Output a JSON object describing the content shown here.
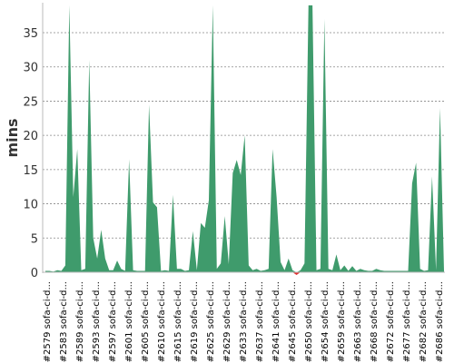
{
  "chart_data": {
    "type": "area",
    "title": "",
    "xlabel": "",
    "ylabel": "mins",
    "ylim": [
      0,
      39
    ],
    "yticks": [
      0,
      5,
      10,
      15,
      20,
      25,
      30,
      35
    ],
    "grid": "horizontal dashed",
    "legend": "none",
    "xtick_labels": [
      "#2579 sofa-ci-d...",
      "#2583 sofa-ci-d...",
      "#2589 sofa-ci-d...",
      "#2593 sofa-ci-d...",
      "#2597 sofa-ci-d...",
      "#2601 sofa-ci-d...",
      "#2605 sofa-ci-d...",
      "#2610 sofa-ci-d...",
      "#2615 sofa-ci-d...",
      "#2619 sofa-ci-d...",
      "#2625 sofa-ci-d...",
      "#2629 sofa-ci-d...",
      "#2633 sofa-ci-d...",
      "#2637 sofa-ci-d...",
      "#2641 sofa-ci-d...",
      "#2645 sofa-ci-d...",
      "#2650 sofa-ci-d...",
      "#2654 sofa-ci-d...",
      "#2659 sofa-ci-d...",
      "#2663 sofa-ci-d...",
      "#2668 sofa-ci-d...",
      "#2672 sofa-ci-d...",
      "#2677 sofa-ci-d...",
      "#2682 sofa-ci-d...",
      "#2686 sofa-ci-d..."
    ],
    "values": [
      0.2,
      0.2,
      0.1,
      0.3,
      0.2,
      1.0,
      39,
      11,
      18,
      0.3,
      0.5,
      31,
      5,
      2,
      6.2,
      2,
      0.3,
      0.3,
      1.7,
      0.5,
      0.2,
      16.5,
      0.3,
      0.2,
      0.2,
      0.2,
      24.5,
      10.2,
      9.5,
      0.2,
      0.3,
      0.2,
      11.3,
      0.5,
      0.5,
      0.2,
      0.3,
      6,
      0.3,
      7.2,
      6.5,
      10.5,
      39,
      0.5,
      1.3,
      8.2,
      1.2,
      14.5,
      16.4,
      14.2,
      20,
      1,
      0.3,
      0.5,
      0.2,
      0.3,
      0.5,
      18,
      11,
      1.5,
      0.3,
      2,
      0.3,
      -0.4,
      0.3,
      1.3,
      39,
      39,
      0.3,
      0.5,
      37,
      0.5,
      0.3,
      2.6,
      0.3,
      1,
      0.2,
      0.9,
      0.2,
      0.5,
      0.3,
      0.2,
      0.2,
      0.5,
      0.3,
      0.2,
      0.2,
      0.2,
      0.2,
      0.2,
      0.2,
      0.2,
      13,
      16,
      0.5,
      0.2,
      0.3,
      14,
      0.3,
      24,
      0.2
    ],
    "colors": {
      "positive": "#3f9b6c",
      "negative": "#e03030",
      "grid": "#888888",
      "axis": "#bbbbbb"
    }
  }
}
